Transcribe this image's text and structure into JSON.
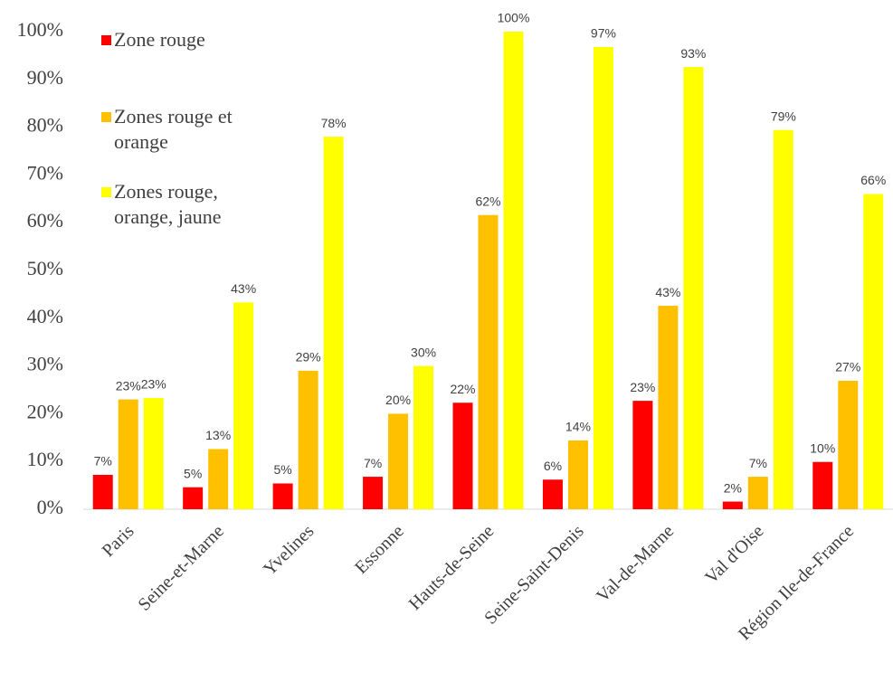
{
  "chart_data": {
    "type": "bar",
    "categories": [
      "Paris",
      "Seine-et-Marne",
      "Yvelines",
      "Essonne",
      "Hauts-de-Seine",
      "Seine-Saint-Denis",
      "Val-de-Marne",
      "Val d'Oise",
      "Région Ile-de-France"
    ],
    "series": [
      {
        "name": "Zone rouge",
        "color": "#ff0000",
        "values": [
          7.2,
          4.6,
          5.4,
          6.8,
          22.3,
          6.2,
          22.7,
          1.6,
          9.9
        ],
        "value_labels": [
          "7%",
          "5%",
          "5%",
          "7%",
          "22%",
          "6%",
          "23%",
          "2%",
          "10%"
        ]
      },
      {
        "name": "Zones rouge et orange",
        "color": "#ffc000",
        "values": [
          23,
          12.6,
          29,
          20,
          61.6,
          14.4,
          42.6,
          6.8,
          26.9
        ],
        "value_labels": [
          "23%",
          "13%",
          "29%",
          "20%",
          "62%",
          "14%",
          "43%",
          "7%",
          "27%"
        ]
      },
      {
        "name": "Zones rouge, orange, jaune",
        "color": "#ffff00",
        "values": [
          23.3,
          43.3,
          78,
          30,
          100,
          96.8,
          92.6,
          79.4,
          66
        ],
        "value_labels": [
          "23%",
          "43%",
          "78%",
          "30%",
          "100%",
          "97%",
          "93%",
          "79%",
          "66%"
        ]
      }
    ],
    "ylim": [
      0,
      100
    ],
    "yticks": [
      {
        "value": 0,
        "label": "0%"
      },
      {
        "value": 10,
        "label": "10%"
      },
      {
        "value": 20,
        "label": "20%"
      },
      {
        "value": 30,
        "label": "30%"
      },
      {
        "value": 40,
        "label": "40%"
      },
      {
        "value": 50,
        "label": "50%"
      },
      {
        "value": 60,
        "label": "60%"
      },
      {
        "value": 70,
        "label": "70%"
      },
      {
        "value": 80,
        "label": "80%"
      },
      {
        "value": 90,
        "label": "90%"
      },
      {
        "value": 100,
        "label": "100%"
      }
    ],
    "grid": false,
    "legend": "top-left"
  }
}
